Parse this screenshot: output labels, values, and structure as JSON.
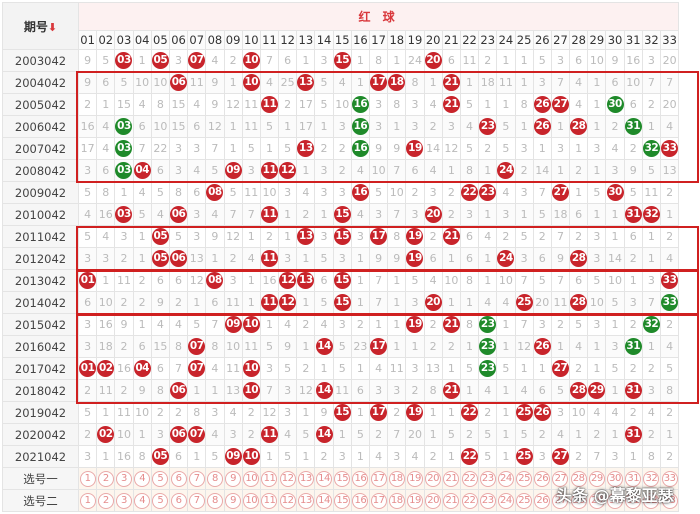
{
  "header": {
    "issue_label": "期号",
    "sort_icon": "arrow-down-icon",
    "red_label": "红 球"
  },
  "numbers": [
    "01",
    "02",
    "03",
    "04",
    "05",
    "06",
    "07",
    "08",
    "09",
    "10",
    "11",
    "12",
    "13",
    "14",
    "15",
    "16",
    "17",
    "18",
    "19",
    "20",
    "21",
    "22",
    "23",
    "24",
    "25",
    "26",
    "27",
    "28",
    "29",
    "30",
    "31",
    "32",
    "33"
  ],
  "colors": {
    "red_ball": "#c8242b",
    "green_ball": "#1f8a2a",
    "frame": "#d02020",
    "header_red": "#d9383c"
  },
  "rows": [
    {
      "issue": "2003042",
      "cells": [
        "9",
        "5",
        "03",
        "1",
        "05",
        "3",
        "07",
        "4",
        "2",
        "10",
        "7",
        "6",
        "1",
        "3",
        "15",
        "1",
        "8",
        "1",
        "24",
        "20",
        "6",
        "11",
        "2",
        "1",
        "1",
        "5",
        "3",
        "6",
        "10",
        "9",
        "16",
        "3",
        "20"
      ]
    },
    {
      "issue": "2004042",
      "cells": [
        "9",
        "6",
        "5",
        "10",
        "10",
        "06",
        "11",
        "9",
        "1",
        "10",
        "4",
        "25",
        "13",
        "5",
        "4",
        "1",
        "17",
        "18",
        "8",
        "1",
        "21",
        "1",
        "18",
        "11",
        "1",
        "3",
        "7",
        "4",
        "1",
        "6",
        "10",
        "7",
        "7"
      ]
    },
    {
      "issue": "2005042",
      "cells": [
        "2",
        "1",
        "15",
        "4",
        "8",
        "15",
        "4",
        "9",
        "12",
        "11",
        "11",
        "2",
        "17",
        "5",
        "10",
        "16",
        "3",
        "8",
        "3",
        "4",
        "21",
        "5",
        "1",
        "1",
        "8",
        "26",
        "27",
        "4",
        "1",
        "30",
        "6",
        "2",
        "20"
      ]
    },
    {
      "issue": "2006042",
      "cells": [
        "16",
        "4",
        "03",
        "6",
        "10",
        "15",
        "6",
        "12",
        "1",
        "11",
        "5",
        "1",
        "17",
        "1",
        "3",
        "16",
        "3",
        "1",
        "3",
        "2",
        "3",
        "4",
        "23",
        "5",
        "1",
        "26",
        "1",
        "28",
        "1",
        "2",
        "31",
        "1",
        "4"
      ]
    },
    {
      "issue": "2007042",
      "cells": [
        "17",
        "4",
        "03",
        "7",
        "22",
        "3",
        "3",
        "7",
        "1",
        "5",
        "1",
        "5",
        "13",
        "2",
        "2",
        "16",
        "9",
        "9",
        "19",
        "14",
        "12",
        "5",
        "2",
        "5",
        "3",
        "1",
        "3",
        "1",
        "3",
        "4",
        "2",
        "32",
        "33"
      ]
    },
    {
      "issue": "2008042",
      "cells": [
        "3",
        "6",
        "03",
        "04",
        "6",
        "3",
        "4",
        "5",
        "09",
        "3",
        "11",
        "12",
        "1",
        "3",
        "2",
        "4",
        "10",
        "7",
        "6",
        "4",
        "1",
        "8",
        "1",
        "24",
        "2",
        "14",
        "1",
        "2",
        "1",
        "3",
        "9",
        "5",
        "13"
      ]
    },
    {
      "issue": "2009042",
      "cells": [
        "5",
        "8",
        "1",
        "4",
        "5",
        "8",
        "6",
        "08",
        "5",
        "11",
        "10",
        "3",
        "4",
        "3",
        "3",
        "16",
        "5",
        "10",
        "2",
        "3",
        "2",
        "22",
        "23",
        "4",
        "3",
        "7",
        "27",
        "1",
        "5",
        "30",
        "5",
        "11",
        "2"
      ]
    },
    {
      "issue": "2010042",
      "cells": [
        "4",
        "16",
        "03",
        "5",
        "4",
        "06",
        "3",
        "4",
        "7",
        "7",
        "11",
        "1",
        "2",
        "1",
        "15",
        "4",
        "3",
        "7",
        "3",
        "20",
        "2",
        "3",
        "1",
        "3",
        "1",
        "5",
        "18",
        "6",
        "1",
        "1",
        "31",
        "32",
        "1"
      ]
    },
    {
      "issue": "2011042",
      "cells": [
        "5",
        "4",
        "3",
        "1",
        "05",
        "5",
        "3",
        "9",
        "12",
        "1",
        "2",
        "1",
        "13",
        "3",
        "15",
        "3",
        "17",
        "8",
        "19",
        "2",
        "21",
        "6",
        "4",
        "2",
        "5",
        "2",
        "7",
        "2",
        "3",
        "1",
        "6",
        "1",
        "2"
      ]
    },
    {
      "issue": "2012042",
      "cells": [
        "3",
        "3",
        "2",
        "1",
        "05",
        "06",
        "13",
        "1",
        "2",
        "4",
        "11",
        "3",
        "1",
        "5",
        "3",
        "1",
        "9",
        "9",
        "19",
        "6",
        "1",
        "6",
        "1",
        "24",
        "3",
        "6",
        "9",
        "28",
        "3",
        "14",
        "2",
        "1",
        "4"
      ]
    },
    {
      "issue": "2013042",
      "cells": [
        "01",
        "1",
        "11",
        "2",
        "6",
        "6",
        "12",
        "08",
        "3",
        "1",
        "16",
        "12",
        "13",
        "6",
        "15",
        "1",
        "7",
        "1",
        "5",
        "4",
        "10",
        "8",
        "1",
        "10",
        "7",
        "5",
        "7",
        "6",
        "5",
        "10",
        "1",
        "3",
        "33"
      ]
    },
    {
      "issue": "2014042",
      "cells": [
        "6",
        "10",
        "2",
        "2",
        "9",
        "2",
        "1",
        "6",
        "11",
        "1",
        "11",
        "12",
        "1",
        "5",
        "15",
        "1",
        "7",
        "1",
        "3",
        "20",
        "1",
        "1",
        "4",
        "4",
        "25",
        "20",
        "11",
        "28",
        "10",
        "5",
        "3",
        "7",
        "33"
      ]
    },
    {
      "issue": "2015042",
      "cells": [
        "3",
        "16",
        "9",
        "1",
        "4",
        "4",
        "5",
        "7",
        "09",
        "10",
        "1",
        "4",
        "2",
        "4",
        "3",
        "2",
        "1",
        "1",
        "19",
        "2",
        "21",
        "8",
        "23",
        "1",
        "7",
        "3",
        "2",
        "5",
        "3",
        "1",
        "2",
        "32",
        "2"
      ]
    },
    {
      "issue": "2016042",
      "cells": [
        "3",
        "18",
        "2",
        "6",
        "15",
        "8",
        "07",
        "8",
        "10",
        "11",
        "5",
        "9",
        "1",
        "14",
        "5",
        "23",
        "17",
        "1",
        "1",
        "2",
        "2",
        "1",
        "23",
        "1",
        "12",
        "26",
        "1",
        "4",
        "1",
        "3",
        "31",
        "1",
        "4"
      ]
    },
    {
      "issue": "2017042",
      "cells": [
        "01",
        "02",
        "16",
        "04",
        "6",
        "7",
        "07",
        "4",
        "11",
        "10",
        "3",
        "5",
        "2",
        "1",
        "5",
        "1",
        "4",
        "11",
        "3",
        "13",
        "1",
        "5",
        "23",
        "5",
        "1",
        "1",
        "27",
        "2",
        "1",
        "5",
        "2",
        "2",
        "5"
      ]
    },
    {
      "issue": "2018042",
      "cells": [
        "2",
        "11",
        "2",
        "9",
        "8",
        "06",
        "1",
        "1",
        "13",
        "10",
        "7",
        "3",
        "12",
        "14",
        "11",
        "6",
        "3",
        "3",
        "2",
        "8",
        "21",
        "1",
        "4",
        "1",
        "4",
        "6",
        "5",
        "28",
        "29",
        "1",
        "31",
        "3",
        "8"
      ]
    },
    {
      "issue": "2019042",
      "cells": [
        "5",
        "1",
        "11",
        "10",
        "2",
        "2",
        "8",
        "3",
        "4",
        "2",
        "12",
        "3",
        "1",
        "9",
        "15",
        "1",
        "17",
        "2",
        "19",
        "1",
        "1",
        "22",
        "2",
        "1",
        "25",
        "26",
        "3",
        "10",
        "4",
        "4",
        "2",
        "4",
        "2"
      ]
    },
    {
      "issue": "2020042",
      "cells": [
        "2",
        "02",
        "10",
        "1",
        "3",
        "06",
        "07",
        "4",
        "3",
        "2",
        "11",
        "4",
        "5",
        "14",
        "1",
        "5",
        "2",
        "7",
        "20",
        "1",
        "5",
        "2",
        "5",
        "1",
        "5",
        "2",
        "4",
        "1",
        "2",
        "1",
        "31",
        "2",
        "1"
      ]
    },
    {
      "issue": "2021042",
      "cells": [
        "3",
        "1",
        "16",
        "8",
        "05",
        "6",
        "1",
        "5",
        "09",
        "10",
        "1",
        "5",
        "1",
        "2",
        "3",
        "1",
        "4",
        "3",
        "4",
        "2",
        "1",
        "22",
        "5",
        "1",
        "25",
        "3",
        "27",
        "2",
        "7",
        "3",
        "1",
        "8",
        "2"
      ]
    }
  ],
  "pick_rows": [
    {
      "label": "选号一"
    },
    {
      "label": "选号二"
    }
  ],
  "watermark": "头条 @幕黎亚瑟"
}
